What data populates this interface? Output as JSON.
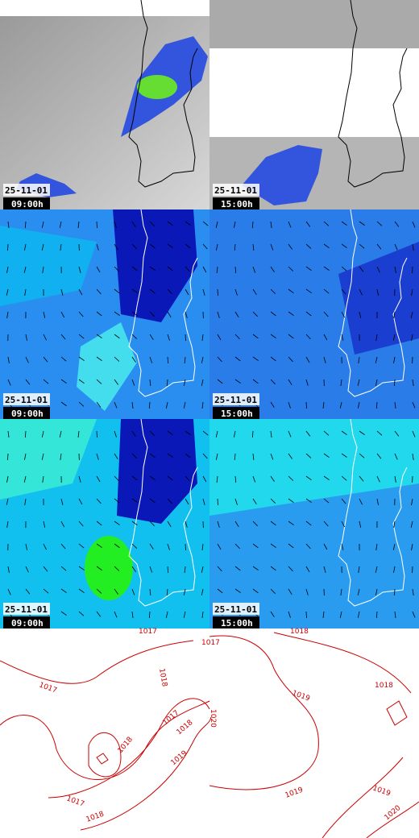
{
  "panels": [
    {
      "date": "25-11-01",
      "time": "09:00h"
    },
    {
      "date": "25-11-01",
      "time": "15:00h"
    },
    {
      "date": "25-11-01",
      "time": "09:00h"
    },
    {
      "date": "25-11-01",
      "time": "15:00h"
    },
    {
      "date": "25-11-01",
      "time": "09:00h"
    },
    {
      "date": "25-11-01",
      "time": "15:00h"
    }
  ],
  "pressure_panels": [
    {
      "labels": [
        "1017",
        "1018",
        "1017",
        "1017",
        "1018",
        "1020",
        "1018",
        "1019",
        "1017",
        "1018"
      ]
    },
    {
      "labels": [
        "1018",
        "1017",
        "1019",
        "1018",
        "1019",
        "1019",
        "1020"
      ]
    }
  ]
}
